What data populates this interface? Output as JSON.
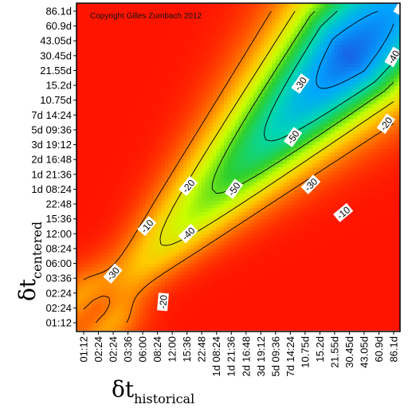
{
  "chart_data": {
    "type": "heatmap",
    "ticks": [
      "01:12",
      "02:24",
      "02:24",
      "03:36",
      "06:00",
      "08:24",
      "12:00",
      "15:36",
      "22:48",
      "1d 08:24",
      "1d 21:36",
      "2d 16:48",
      "3d 19:12",
      "5d 09:36",
      "7d 14:24",
      "10.75d",
      "15.2d",
      "21.55d",
      "30.45d",
      "43.05d",
      "60.9d",
      "86.1d"
    ],
    "xlabel": {
      "symbol": "δt",
      "subscript": "historical"
    },
    "ylabel": {
      "symbol": "δt",
      "subscript": "centered"
    },
    "copyright": "Copyright Gilles Zumbach 2012",
    "contour_levels": [
      -10,
      -20,
      -30,
      -40,
      -50
    ],
    "contour_labels": [
      {
        "text": "-10",
        "i": 4.3,
        "j": 6.5,
        "angle": -50
      },
      {
        "text": "-20",
        "i": 7.1,
        "j": 9.2,
        "angle": -50
      },
      {
        "text": "-30",
        "i": 2.0,
        "j": 3.3,
        "angle": -50
      },
      {
        "text": "-40",
        "i": 7.1,
        "j": 6.0,
        "angle": -45
      },
      {
        "text": "-50",
        "i": 10.2,
        "j": 9.0,
        "angle": -55
      },
      {
        "text": "-30",
        "i": 14.7,
        "j": 16.1,
        "angle": -55
      },
      {
        "text": "-50",
        "i": 14.2,
        "j": 12.5,
        "angle": -55
      },
      {
        "text": "-30",
        "i": 15.4,
        "j": 9.3,
        "angle": -45
      },
      {
        "text": "-10",
        "i": 17.6,
        "j": 7.4,
        "angle": -40
      },
      {
        "text": "-40",
        "i": 21.0,
        "j": 17.9,
        "angle": -60
      },
      {
        "text": "-20",
        "i": 20.5,
        "j": 13.4,
        "angle": -55
      },
      {
        "text": "-40",
        "i": 21.6,
        "j": 21.3,
        "angle": -60
      },
      {
        "text": "-20",
        "i": 5.4,
        "j": 1.4,
        "angle": -85
      }
    ],
    "colormap": [
      "#ff1400",
      "#ff6a00",
      "#ffc800",
      "#c8ff00",
      "#2ccf2e",
      "#00d6b4",
      "#00a6ff",
      "#1d4fe0"
    ]
  }
}
